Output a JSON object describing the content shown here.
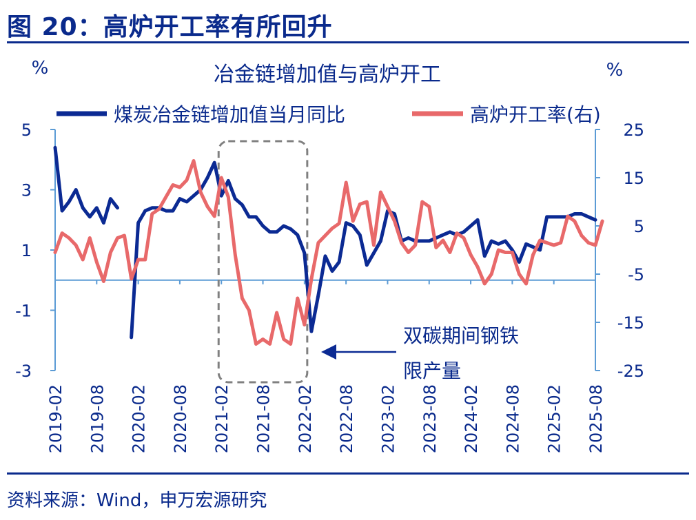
{
  "header": {
    "figure_title": "图 20：高炉开工率有所回升"
  },
  "footer": {
    "source": "资料来源：Wind，申万宏源研究"
  },
  "colors": {
    "navy": "#0a2a8c",
    "series_blue": "#0b2a93",
    "series_red": "#e8696a",
    "axis": "#5b9bd5",
    "box": "#808080"
  },
  "chart_data": {
    "type": "line",
    "title": "冶金链增加值与高炉开工",
    "y_left_unit": "%",
    "y_right_unit": "%",
    "y_left": {
      "min": -3,
      "max": 5,
      "ticks": [
        "5",
        "3",
        "1",
        "-1",
        "-3"
      ]
    },
    "y_right": {
      "min": -25,
      "max": 25,
      "ticks": [
        "25",
        "15",
        "5",
        "-5",
        "-15",
        "-25"
      ]
    },
    "x_ticks": [
      "2019-02",
      "2019-08",
      "2020-02",
      "2020-08",
      "2021-02",
      "2021-08",
      "2022-02",
      "2022-08",
      "2023-02",
      "2023-08",
      "2024-02",
      "2024-08",
      "2025-02",
      "2025-08"
    ],
    "x_start": "2019-02",
    "series": [
      {
        "name": "煤炭冶金链增加值当月同比",
        "axis": "left",
        "color": "#0b2a93",
        "values": [
          4.4,
          2.3,
          2.6,
          3.0,
          2.4,
          2.1,
          2.4,
          1.9,
          2.7,
          2.4,
          null,
          -1.9,
          1.9,
          2.3,
          2.4,
          2.4,
          2.3,
          2.3,
          2.7,
          2.6,
          2.8,
          3.0,
          3.4,
          3.9,
          2.8,
          3.3,
          2.7,
          2.5,
          2.1,
          2.1,
          1.8,
          1.6,
          1.6,
          1.8,
          1.7,
          1.5,
          0.9,
          -1.7,
          -0.5,
          0.8,
          0.3,
          0.6,
          1.9,
          1.8,
          1.5,
          0.5,
          0.9,
          1.3,
          2.3,
          2.2,
          1.3,
          1.4,
          1.3,
          1.3,
          1.3,
          1.4,
          1.5,
          1.6,
          1.5,
          1.6,
          1.8,
          2.0,
          0.8,
          1.3,
          1.2,
          1.3,
          1.0,
          0.6,
          1.2,
          1.1,
          1.0,
          2.1,
          2.1,
          2.1,
          2.1,
          2.2,
          2.2,
          2.1,
          2.0
        ]
      },
      {
        "name": "高炉开工率(右)",
        "axis": "right",
        "color": "#e8696a",
        "values": [
          -0.5,
          3.5,
          2.5,
          1.0,
          -2.0,
          2.5,
          -2.5,
          -6.5,
          -0.5,
          2.5,
          3.0,
          -6.0,
          -2.0,
          -2.0,
          7.5,
          8.5,
          11.0,
          13.5,
          13.0,
          14.5,
          18.5,
          12.0,
          9.0,
          7.0,
          15.0,
          11.0,
          -1.0,
          -10.0,
          -12.5,
          -19.5,
          -18.5,
          -19.5,
          -13.0,
          -18.5,
          -19.5,
          -10.0,
          -15.5,
          -6.0,
          1.5,
          3.0,
          4.5,
          5.5,
          14.0,
          6.0,
          9.5,
          10.0,
          1.0,
          12.0,
          9.0,
          6.0,
          1.5,
          -0.5,
          1.0,
          10.0,
          9.0,
          0.5,
          2.0,
          -0.5,
          3.5,
          2.5,
          -1.0,
          -3.5,
          -7.0,
          -5.0,
          0.0,
          -0.5,
          -0.5,
          -5.0,
          -7.0,
          -1.0,
          2.0,
          1.5,
          1.0,
          1.5,
          7.0,
          6.0,
          3.0,
          1.5,
          1.0,
          6.0
        ]
      }
    ],
    "annotation": {
      "lines": [
        "双碳期间钢铁",
        "限产量"
      ]
    },
    "highlight_period": [
      "2021-02",
      "2022-02"
    ],
    "grid": false,
    "legend_position": "top"
  }
}
